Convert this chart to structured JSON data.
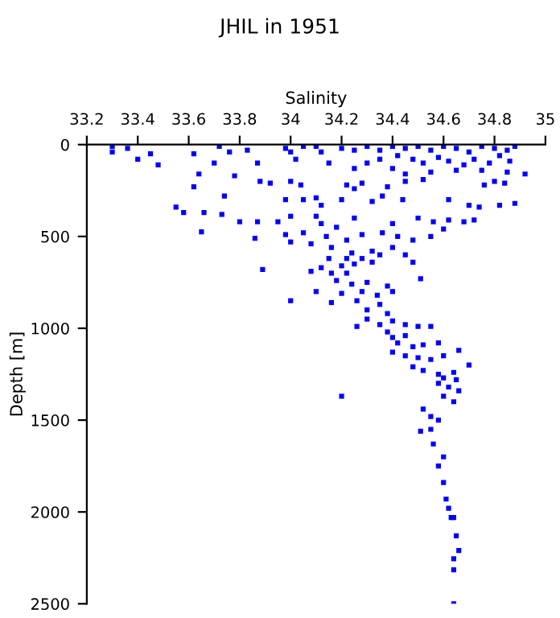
{
  "chart_data": {
    "type": "scatter",
    "title": "JHIL in 1951",
    "xlabel": "Salinity",
    "ylabel": "Depth [m]",
    "xlim": [
      33.2,
      35
    ],
    "xticks": [
      33.2,
      33.4,
      33.6,
      33.8,
      34,
      34.2,
      34.4,
      34.6,
      34.8,
      35
    ],
    "ylim": [
      2500,
      0
    ],
    "yticks": [
      0,
      500,
      1000,
      1500,
      2000,
      2500
    ],
    "grid": false,
    "legend": false,
    "marker": "square",
    "series": [
      {
        "color": "#0000ff",
        "x": [
          33.3,
          33.3,
          33.36,
          33.4,
          33.45,
          33.48,
          33.62,
          33.64,
          33.62,
          33.7,
          33.72,
          33.74,
          33.76,
          33.78,
          33.83,
          33.87,
          33.88,
          33.55,
          33.58,
          33.66,
          33.73,
          33.8,
          33.87,
          33.86,
          33.65,
          33.98,
          34.0,
          34.02,
          34.05,
          34.1,
          34.12,
          34.15,
          34.2,
          34.25,
          34.3,
          34.35,
          34.4,
          34.45,
          34.5,
          34.55,
          34.6,
          34.65,
          34.7,
          34.75,
          34.8,
          34.85,
          34.88,
          34.42,
          34.48,
          34.52,
          34.58,
          34.62,
          34.68,
          34.72,
          34.78,
          34.82,
          34.86,
          34.3,
          34.35,
          34.25,
          34.4,
          34.45,
          34.55,
          34.65,
          34.75,
          34.85,
          34.8,
          34.76,
          34.84,
          34.92,
          34.22,
          34.28,
          34.38,
          34.45,
          34.52,
          34.25,
          34.0,
          34.04,
          33.92,
          33.98,
          34.05,
          34.1,
          34.12,
          34.2,
          34.32,
          34.36,
          34.44,
          34.62,
          34.7,
          34.74,
          34.82,
          34.88,
          34.1,
          34.0,
          33.95,
          34.12,
          34.25,
          34.18,
          34.4,
          34.5,
          34.56,
          34.62,
          34.68,
          34.72,
          34.6,
          34.55,
          34.48,
          34.42,
          34.36,
          34.28,
          34.22,
          34.14,
          34.05,
          33.98,
          34.0,
          34.08,
          34.16,
          34.24,
          34.32,
          34.4,
          34.15,
          34.22,
          34.28,
          34.32,
          34.2,
          34.25,
          34.35,
          34.45,
          34.48,
          33.89,
          34.08,
          34.12,
          34.16,
          34.22,
          34.51,
          34.18,
          34.24,
          34.3,
          34.38,
          34.1,
          34.2,
          34.28,
          34.34,
          34.4,
          34.0,
          34.16,
          34.26,
          34.35,
          34.3,
          34.38,
          34.3,
          34.35,
          34.4,
          34.45,
          34.5,
          34.55,
          34.26,
          34.38,
          34.4,
          34.45,
          34.42,
          34.48,
          34.52,
          34.58,
          34.66,
          34.4,
          34.45,
          34.5,
          34.55,
          34.6,
          34.7,
          34.48,
          34.52,
          34.58,
          34.64,
          34.6,
          34.65,
          34.58,
          34.62,
          34.66,
          34.2,
          34.6,
          34.64,
          34.52,
          34.55,
          34.58,
          34.51,
          34.55,
          34.56,
          34.6,
          34.58,
          34.6,
          34.61,
          34.62,
          34.63,
          34.64,
          34.65,
          34.66,
          34.64,
          34.64,
          34.64
        ],
        "values": [
          10,
          40,
          20,
          80,
          50,
          110,
          50,
          160,
          230,
          100,
          10,
          280,
          40,
          170,
          30,
          100,
          200,
          340,
          370,
          370,
          380,
          420,
          420,
          510,
          475,
          20,
          40,
          80,
          10,
          10,
          40,
          100,
          20,
          30,
          10,
          30,
          10,
          20,
          10,
          30,
          10,
          20,
          40,
          10,
          20,
          30,
          10,
          60,
          80,
          100,
          70,
          90,
          110,
          80,
          100,
          60,
          90,
          100,
          80,
          130,
          130,
          160,
          150,
          140,
          140,
          150,
          200,
          220,
          210,
          160,
          220,
          210,
          230,
          200,
          190,
          240,
          200,
          220,
          210,
          300,
          300,
          290,
          330,
          300,
          310,
          280,
          300,
          300,
          330,
          340,
          330,
          320,
          390,
          390,
          420,
          430,
          400,
          450,
          430,
          400,
          420,
          410,
          420,
          410,
          460,
          500,
          520,
          500,
          480,
          490,
          520,
          500,
          480,
          490,
          530,
          540,
          560,
          590,
          580,
          560,
          620,
          620,
          620,
          640,
          660,
          650,
          600,
          600,
          640,
          680,
          690,
          670,
          700,
          700,
          730,
          740,
          760,
          750,
          770,
          800,
          810,
          800,
          820,
          800,
          850,
          860,
          850,
          870,
          900,
          920,
          950,
          980,
          960,
          980,
          990,
          990,
          990,
          1020,
          1050,
          1040,
          1080,
          1100,
          1090,
          1080,
          1120,
          1130,
          1150,
          1160,
          1170,
          1150,
          1200,
          1210,
          1230,
          1250,
          1240,
          1270,
          1280,
          1300,
          1320,
          1340,
          1370,
          1370,
          1400,
          1440,
          1480,
          1500,
          1560,
          1550,
          1630,
          1700,
          1750,
          1840,
          1930,
          1980,
          2030,
          2030,
          2130,
          2210,
          2255,
          2315,
          2500
        ]
      }
    ]
  }
}
